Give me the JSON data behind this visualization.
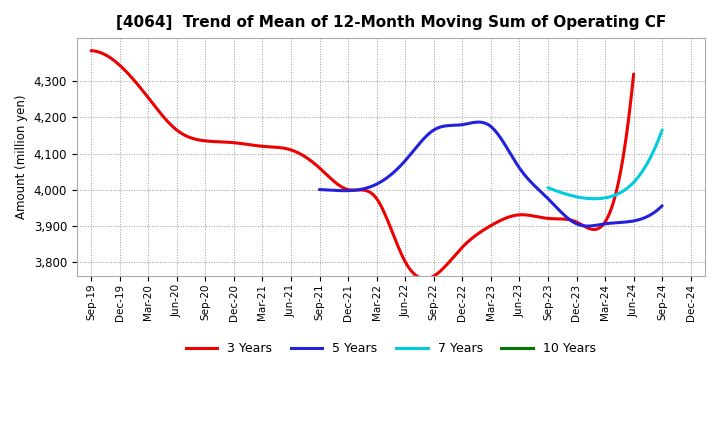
{
  "title": "[4064]  Trend of Mean of 12-Month Moving Sum of Operating CF",
  "ylabel": "Amount (million yen)",
  "background_color": "#ffffff",
  "grid_color": "#888888",
  "ylim": [
    3760,
    4420
  ],
  "yticks": [
    3800,
    3900,
    4000,
    4100,
    4200,
    4300
  ],
  "x_labels": [
    "Sep-19",
    "Dec-19",
    "Mar-20",
    "Jun-20",
    "Sep-20",
    "Dec-20",
    "Mar-21",
    "Jun-21",
    "Sep-21",
    "Dec-21",
    "Mar-22",
    "Jun-22",
    "Sep-22",
    "Dec-22",
    "Mar-23",
    "Jun-23",
    "Sep-23",
    "Dec-23",
    "Mar-24",
    "Jun-24",
    "Sep-24",
    "Dec-24"
  ],
  "series": {
    "3 Years": {
      "color": "#ee0000",
      "linewidth": 2.2,
      "x": [
        0,
        1,
        2,
        3,
        4,
        5,
        6,
        7,
        8,
        9,
        10,
        11,
        12,
        13,
        14,
        15,
        16,
        17,
        18,
        19
      ],
      "y": [
        4385,
        4345,
        4255,
        4165,
        4135,
        4130,
        4120,
        4110,
        4060,
        4000,
        3975,
        3800,
        3760,
        3840,
        3900,
        3930,
        3920,
        3910,
        3910,
        4320
      ]
    },
    "5 Years": {
      "color": "#2222dd",
      "linewidth": 2.2,
      "x": [
        8,
        9,
        10,
        11,
        12,
        13,
        14,
        15,
        16,
        17,
        18,
        19,
        20
      ],
      "y": [
        4000,
        3997,
        4015,
        4080,
        4165,
        4180,
        4175,
        4060,
        3975,
        3905,
        3905,
        3913,
        3955
      ]
    },
    "7 Years": {
      "color": "#00ccdd",
      "linewidth": 2.2,
      "x": [
        16,
        17,
        18,
        19,
        20
      ],
      "y": [
        4005,
        3980,
        3977,
        4020,
        4165
      ]
    },
    "10 Years": {
      "color": "#007700",
      "linewidth": 2.2,
      "x": [],
      "y": []
    }
  },
  "legend_labels": [
    "3 Years",
    "5 Years",
    "7 Years",
    "10 Years"
  ],
  "legend_colors": [
    "#ee0000",
    "#2222dd",
    "#00ccdd",
    "#007700"
  ]
}
